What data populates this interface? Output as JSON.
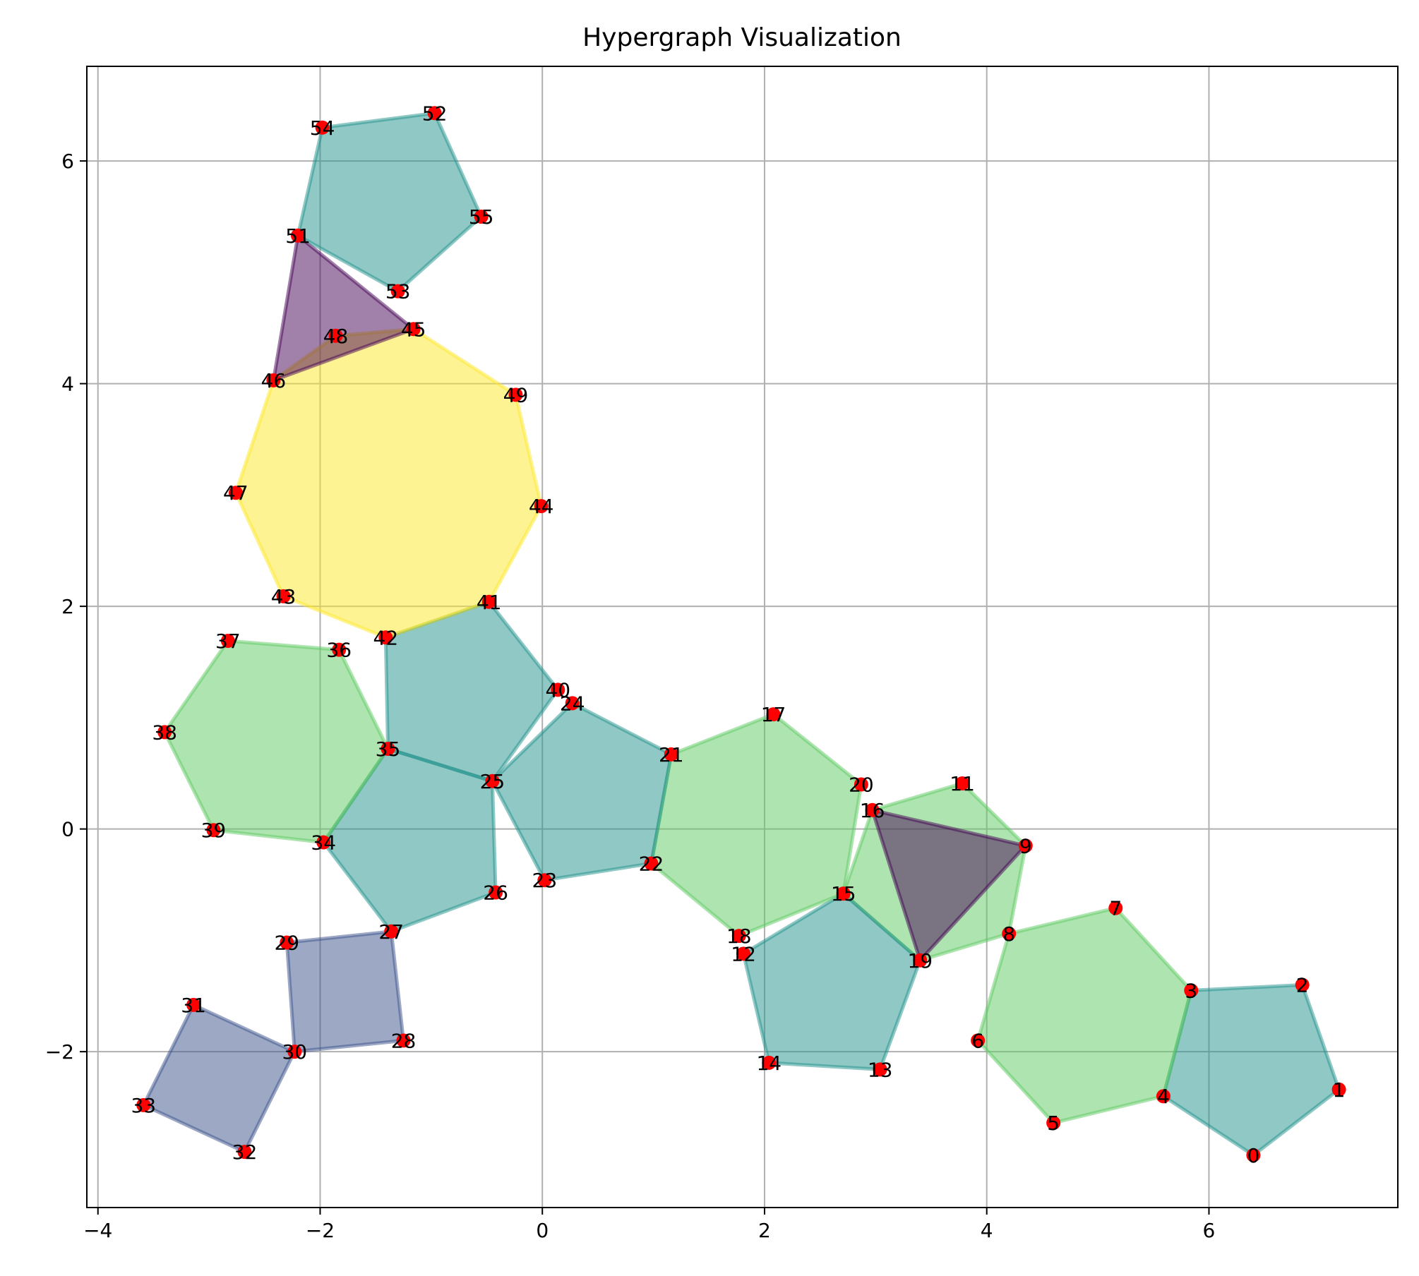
{
  "chart_data": {
    "type": "scatter",
    "title": "Hypergraph Visualization",
    "xlabel": "",
    "ylabel": "",
    "xlim": [
      -4.1,
      7.7
    ],
    "ylim": [
      -3.4,
      6.85
    ],
    "xticks": [
      -4,
      -2,
      0,
      2,
      4,
      6
    ],
    "yticks": [
      -2,
      0,
      2,
      4,
      6
    ],
    "grid": true,
    "node_color": "#ff0000",
    "nodes": [
      {
        "id": "0",
        "x": 6.4,
        "y": -2.93
      },
      {
        "id": "1",
        "x": 7.17,
        "y": -2.34
      },
      {
        "id": "2",
        "x": 6.84,
        "y": -1.4
      },
      {
        "id": "3",
        "x": 5.84,
        "y": -1.45
      },
      {
        "id": "4",
        "x": 5.59,
        "y": -2.4
      },
      {
        "id": "5",
        "x": 4.6,
        "y": -2.64
      },
      {
        "id": "6",
        "x": 3.92,
        "y": -1.9
      },
      {
        "id": "7",
        "x": 5.16,
        "y": -0.71
      },
      {
        "id": "8",
        "x": 4.2,
        "y": -0.94
      },
      {
        "id": "9",
        "x": 4.35,
        "y": -0.15
      },
      {
        "id": "11",
        "x": 3.78,
        "y": 0.41
      },
      {
        "id": "12",
        "x": 1.81,
        "y": -1.12
      },
      {
        "id": "13",
        "x": 3.04,
        "y": -2.16
      },
      {
        "id": "14",
        "x": 2.04,
        "y": -2.1
      },
      {
        "id": "15",
        "x": 2.71,
        "y": -0.58
      },
      {
        "id": "16",
        "x": 2.97,
        "y": 0.17
      },
      {
        "id": "17",
        "x": 2.08,
        "y": 1.03
      },
      {
        "id": "18",
        "x": 1.77,
        "y": -0.96
      },
      {
        "id": "19",
        "x": 3.4,
        "y": -1.18
      },
      {
        "id": "20",
        "x": 2.87,
        "y": 0.4
      },
      {
        "id": "21",
        "x": 1.16,
        "y": 0.67
      },
      {
        "id": "22",
        "x": 0.98,
        "y": -0.31
      },
      {
        "id": "23",
        "x": 0.02,
        "y": -0.46
      },
      {
        "id": "24",
        "x": 0.27,
        "y": 1.13
      },
      {
        "id": "25",
        "x": -0.45,
        "y": 0.43
      },
      {
        "id": "26",
        "x": -0.42,
        "y": -0.57
      },
      {
        "id": "27",
        "x": -1.36,
        "y": -0.92
      },
      {
        "id": "28",
        "x": -1.25,
        "y": -1.9
      },
      {
        "id": "29",
        "x": -2.3,
        "y": -1.02
      },
      {
        "id": "30",
        "x": -2.23,
        "y": -2.0
      },
      {
        "id": "31",
        "x": -3.14,
        "y": -1.58
      },
      {
        "id": "32",
        "x": -2.68,
        "y": -2.9
      },
      {
        "id": "33",
        "x": -3.59,
        "y": -2.48
      },
      {
        "id": "34",
        "x": -1.97,
        "y": -0.12
      },
      {
        "id": "35",
        "x": -1.39,
        "y": 0.72
      },
      {
        "id": "36",
        "x": -1.83,
        "y": 1.61
      },
      {
        "id": "37",
        "x": -2.83,
        "y": 1.69
      },
      {
        "id": "38",
        "x": -3.4,
        "y": 0.87
      },
      {
        "id": "39",
        "x": -2.96,
        "y": -0.01
      },
      {
        "id": "40",
        "x": 0.14,
        "y": 1.25
      },
      {
        "id": "41",
        "x": -0.48,
        "y": 2.04
      },
      {
        "id": "42",
        "x": -1.41,
        "y": 1.72
      },
      {
        "id": "43",
        "x": -2.33,
        "y": 2.09
      },
      {
        "id": "44",
        "x": -0.01,
        "y": 2.9
      },
      {
        "id": "45",
        "x": -1.16,
        "y": 4.49
      },
      {
        "id": "46",
        "x": -2.42,
        "y": 4.03
      },
      {
        "id": "47",
        "x": -2.76,
        "y": 3.02
      },
      {
        "id": "48",
        "x": -1.86,
        "y": 4.43
      },
      {
        "id": "49",
        "x": -0.24,
        "y": 3.9
      },
      {
        "id": "51",
        "x": -2.2,
        "y": 5.33
      },
      {
        "id": "52",
        "x": -0.97,
        "y": 6.43
      },
      {
        "id": "53",
        "x": -1.3,
        "y": 4.83
      },
      {
        "id": "54",
        "x": -1.98,
        "y": 6.3
      },
      {
        "id": "55",
        "x": -0.55,
        "y": 5.5
      }
    ],
    "hyperedges": [
      {
        "nodes": [
          "0",
          "1",
          "2",
          "3",
          "4"
        ],
        "color": "#21918c"
      },
      {
        "nodes": [
          "4",
          "3",
          "7",
          "8",
          "6",
          "5"
        ],
        "color": "#5ec962"
      },
      {
        "nodes": [
          "8",
          "9",
          "11",
          "16",
          "15",
          "19"
        ],
        "color": "#5ec962"
      },
      {
        "nodes": [
          "16",
          "9",
          "19"
        ],
        "color": "#440154"
      },
      {
        "nodes": [
          "15",
          "19",
          "13",
          "14",
          "12"
        ],
        "color": "#21918c"
      },
      {
        "nodes": [
          "21",
          "17",
          "20",
          "15",
          "18",
          "22"
        ],
        "color": "#5ec962"
      },
      {
        "nodes": [
          "25",
          "24",
          "21",
          "22",
          "23"
        ],
        "color": "#21918c"
      },
      {
        "nodes": [
          "35",
          "42",
          "41",
          "40",
          "25"
        ],
        "color": "#21918c"
      },
      {
        "nodes": [
          "34",
          "35",
          "25",
          "26",
          "27"
        ],
        "color": "#21918c"
      },
      {
        "nodes": [
          "29",
          "27",
          "28",
          "30"
        ],
        "color": "#3b528b"
      },
      {
        "nodes": [
          "31",
          "30",
          "32",
          "33"
        ],
        "color": "#3b528b"
      },
      {
        "nodes": [
          "39",
          "38",
          "37",
          "36",
          "35",
          "34"
        ],
        "color": "#5ec962"
      },
      {
        "nodes": [
          "42",
          "43",
          "47",
          "46",
          "48",
          "45",
          "49",
          "44",
          "41"
        ],
        "color": "#fde725"
      },
      {
        "nodes": [
          "46",
          "51",
          "45"
        ],
        "color": "#440154"
      },
      {
        "nodes": [
          "51",
          "54",
          "52",
          "55",
          "53"
        ],
        "color": "#21918c"
      }
    ]
  }
}
